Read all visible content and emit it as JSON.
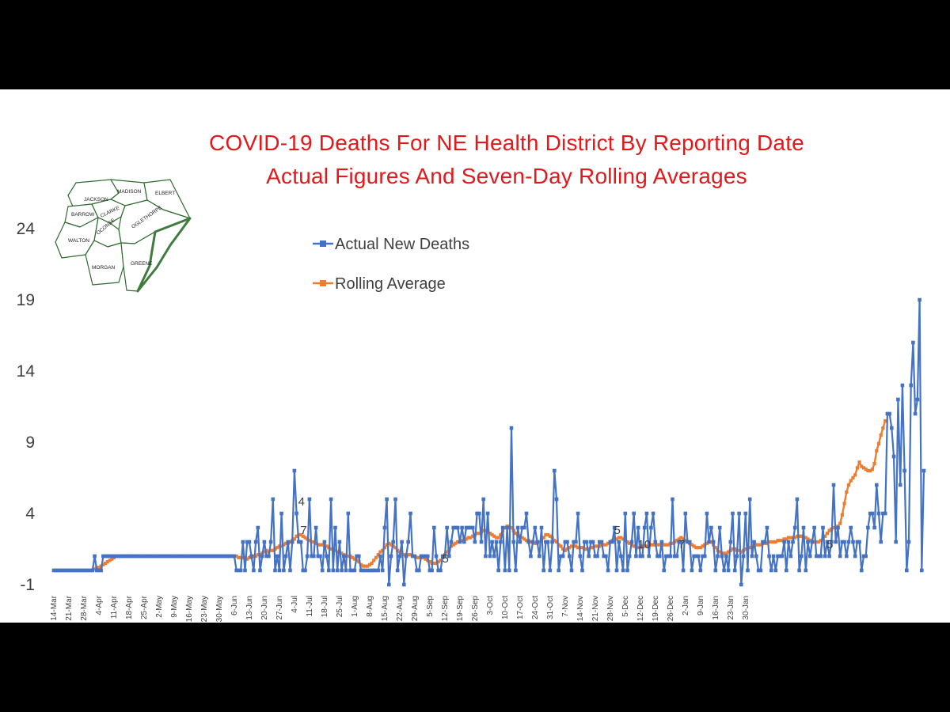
{
  "title_line1": "COVID-19 Deaths For NE Health District By Reporting Date",
  "title_line2": "Actual Figures And Seven-Day Rolling Averages",
  "map": {
    "counties": [
      "JACKSON",
      "MADISON",
      "ELBERT",
      "BARROW",
      "CLARKE",
      "OCONEE",
      "OGLETHORPE",
      "WALTON",
      "MORGAN",
      "GREENE"
    ]
  },
  "colors": {
    "actual": "#4472c4",
    "rolling": "#ed7d31",
    "title": "#e0191b",
    "grid_text": "#404040",
    "map_border": "#3e7c3e"
  },
  "chart_data": {
    "type": "line",
    "title": "COVID-19 Deaths For NE Health District By Reporting Date Actual Figures And Seven-Day Rolling Averages",
    "ylim": [
      -1,
      24
    ],
    "yticks": [
      -1,
      4,
      9,
      14,
      19,
      24
    ],
    "x_tick_labels": [
      "14-Mar",
      "21-Mar",
      "28-Mar",
      "4-Apr",
      "11-Apr",
      "18-Apr",
      "25-Apr",
      "2-May",
      "9-May",
      "16-May",
      "23-May",
      "30-May",
      "6-Jun",
      "13-Jun",
      "20-Jun",
      "27-Jun",
      "4-Jul",
      "11-Jul",
      "18-Jul",
      "25-Jul",
      "1-Aug",
      "8-Aug",
      "15-Aug",
      "22-Aug",
      "29-Aug",
      "5-Sep",
      "12-Sep",
      "19-Sep",
      "26-Sep",
      "3-Oct",
      "10-Oct",
      "17-Oct",
      "24-Oct",
      "31-Oct",
      "7-Nov",
      "14-Nov",
      "21-Nov",
      "28-Nov",
      "5-Dec",
      "12-Dec",
      "19-Dec",
      "26-Dec",
      "2-Jan",
      "9-Jan",
      "16-Jan",
      "23-Jan",
      "30-Jan"
    ],
    "legend": {
      "position": "upper-left"
    },
    "grid": false,
    "series": [
      {
        "name": "Actual New Deaths",
        "marker": "square",
        "values": [
          0,
          0,
          0,
          0,
          0,
          0,
          0,
          0,
          0,
          0,
          0,
          0,
          0,
          0,
          0,
          0,
          0,
          0,
          0,
          1,
          0,
          0,
          0,
          1,
          1,
          1,
          1,
          1,
          1,
          1,
          1,
          1,
          1,
          1,
          1,
          1,
          1,
          1,
          1,
          1,
          1,
          1,
          1,
          1,
          1,
          1,
          1,
          1,
          1,
          1,
          1,
          1,
          1,
          1,
          1,
          1,
          1,
          1,
          1,
          1,
          1,
          1,
          1,
          1,
          1,
          1,
          1,
          1,
          1,
          1,
          1,
          1,
          1,
          1,
          1,
          1,
          1,
          1,
          1,
          1,
          1,
          1,
          1,
          1,
          1,
          0,
          0,
          0,
          2,
          0,
          2,
          2,
          1,
          0,
          2,
          3,
          0,
          1,
          2,
          1,
          1,
          2,
          5,
          0,
          1,
          0,
          4,
          0,
          1,
          2,
          0,
          2,
          7,
          4,
          2,
          2,
          0,
          0,
          1,
          5,
          1,
          1,
          3,
          1,
          1,
          0,
          2,
          1,
          0,
          5,
          0,
          3,
          0,
          2,
          0,
          1,
          0,
          4,
          0,
          0,
          0,
          1,
          1,
          0,
          0,
          0,
          0,
          0,
          0,
          0,
          0,
          0,
          1,
          0,
          3,
          5,
          -1,
          1,
          2,
          5,
          0,
          1,
          2,
          -1,
          1,
          2,
          4,
          1,
          1,
          0,
          0,
          1,
          1,
          1,
          1,
          0,
          0,
          3,
          1,
          0,
          0,
          1,
          1,
          3,
          1,
          2,
          3,
          3,
          3,
          2,
          3,
          2,
          3,
          3,
          3,
          3,
          2,
          4,
          4,
          2,
          5,
          1,
          4,
          1,
          2,
          1,
          2,
          0,
          2,
          3,
          0,
          3,
          0,
          10,
          2,
          0,
          3,
          2,
          3,
          3,
          4,
          2,
          1,
          2,
          3,
          2,
          1,
          3,
          0,
          2,
          2,
          0,
          2,
          7,
          5,
          0,
          1,
          1,
          2,
          2,
          1,
          0,
          2,
          2,
          4,
          1,
          0,
          2,
          2,
          1,
          2,
          2,
          1,
          1,
          2,
          2,
          1,
          1,
          0,
          2,
          2,
          3,
          0,
          2,
          1,
          0,
          4,
          0,
          1,
          2,
          4,
          1,
          3,
          1,
          1,
          3,
          4,
          1,
          3,
          4,
          2,
          1,
          1,
          2,
          0,
          1,
          1,
          1,
          5,
          1,
          1,
          2,
          2,
          0,
          4,
          2,
          2,
          0,
          1,
          1,
          1,
          0,
          1,
          1,
          4,
          2,
          3,
          2,
          0,
          1,
          3,
          1,
          0,
          1,
          0,
          2,
          4,
          0,
          1,
          4,
          -1,
          1,
          4,
          0,
          5,
          1,
          2,
          1,
          0,
          0,
          2,
          2,
          3,
          1,
          0,
          1,
          0,
          1,
          1,
          1,
          2,
          0,
          2,
          1,
          2,
          3,
          5,
          0,
          1,
          3,
          0,
          2,
          1,
          2,
          3,
          1,
          1,
          1,
          3,
          1,
          2,
          1,
          2,
          6,
          2,
          3,
          1,
          2,
          2,
          1,
          2,
          3,
          2,
          1,
          2,
          2,
          0,
          1,
          1,
          3,
          4,
          4,
          3,
          6,
          4,
          2,
          4,
          4,
          11,
          11,
          10,
          8,
          2,
          12,
          6,
          13,
          7,
          0,
          2,
          13,
          16,
          11,
          12,
          19,
          0,
          7
        ],
        "labels": [
          {
            "i": 113,
            "v": "4"
          },
          {
            "i": 114,
            "v": "7"
          },
          {
            "i": 180,
            "v": "5"
          },
          {
            "i": 260,
            "v": "5"
          },
          {
            "i": 271,
            "v": "10"
          },
          {
            "i": 290,
            "v": "7"
          },
          {
            "i": 359,
            "v": "5"
          },
          {
            "i": 417,
            "v": "4"
          },
          {
            "i": 421,
            "v": "5"
          },
          {
            "i": 436,
            "v": "6"
          },
          {
            "i": 457,
            "v": "6"
          },
          {
            "i": 462,
            "v": "11"
          },
          {
            "i": 466,
            "v": "8"
          },
          {
            "i": 470,
            "v": "12"
          },
          {
            "i": 472,
            "v": "13"
          },
          {
            "i": 474,
            "v": "10"
          },
          {
            "i": 480,
            "v": "16"
          },
          {
            "i": 484,
            "v": "19"
          }
        ]
      },
      {
        "name": "Rolling Average",
        "marker": "square",
        "start_index": 19,
        "values": [
          0.1,
          0.2,
          0.2,
          0.3,
          0.4,
          0.5,
          0.6,
          0.7,
          0.8,
          0.9,
          1,
          1,
          1,
          1,
          1,
          1,
          1,
          1,
          1,
          1,
          1,
          1,
          1,
          1,
          1,
          1,
          1,
          1,
          1,
          1,
          1,
          1,
          1,
          1,
          1,
          1,
          1,
          1,
          1,
          1,
          1,
          1,
          1,
          1,
          1,
          1,
          1,
          1,
          1,
          1,
          1,
          1,
          1,
          1,
          1,
          1,
          1,
          1,
          1,
          1,
          1,
          1,
          1,
          1,
          1,
          1,
          1,
          0.9,
          0.9,
          0.9,
          0.9,
          0.8,
          0.9,
          0.9,
          1,
          1,
          1.1,
          1.1,
          1.2,
          1.3,
          1.4,
          1.3,
          1.4,
          1.4,
          1.5,
          1.6,
          1.7,
          1.7,
          1.8,
          1.9,
          1.9,
          2,
          2.1,
          2.2,
          2.4,
          2.5,
          2.5,
          2.4,
          2.3,
          2.2,
          2.1,
          2,
          2,
          1.9,
          1.8,
          1.8,
          1.8,
          1.7,
          1.7,
          1.6,
          1.5,
          1.5,
          1.4,
          1.3,
          1.3,
          1.2,
          1.1,
          1,
          1,
          1,
          0.9,
          0.8,
          0.7,
          0.6,
          0.4,
          0.3,
          0.3,
          0.3,
          0.4,
          0.5,
          0.7,
          0.9,
          1.1,
          1.3,
          1.4,
          1.6,
          1.8,
          1.9,
          1.8,
          1.7,
          1.6,
          1.4,
          1.3,
          1.2,
          1.1,
          1.1,
          1.1,
          1.1,
          1,
          1,
          0.9,
          0.9,
          0.9,
          0.9,
          0.8,
          0.7,
          0.6,
          0.5,
          0.5,
          0.5,
          0.6,
          0.7,
          0.9,
          1.1,
          1.3,
          1.5,
          1.7,
          1.8,
          1.9,
          2,
          2,
          2.1,
          2.2,
          2.2,
          2.3,
          2.3,
          2.4,
          2.5,
          2.6,
          2.6,
          2.7,
          2.8,
          2.8,
          2.7,
          2.6,
          2.5,
          2.4,
          2.3,
          2.3,
          2.5,
          2.8,
          3,
          3.1,
          3.1,
          3,
          2.8,
          2.6,
          2.5,
          2.4,
          2.3,
          2.2,
          2.1,
          2.1,
          2,
          2,
          1.9,
          1.9,
          2,
          2.1,
          2.3,
          2.5,
          2.5,
          2.4,
          2.3,
          2.1,
          2,
          1.8,
          1.7,
          1.5,
          1.4,
          1.5,
          1.6,
          1.7,
          1.7,
          1.7,
          1.6,
          1.6,
          1.6,
          1.5,
          1.5,
          1.5,
          1.6,
          1.6,
          1.7,
          1.7,
          1.7,
          1.8,
          1.8,
          1.8,
          1.9,
          2,
          2.1,
          2.2,
          2.2,
          2.3,
          2.3,
          2.2,
          2.1,
          2,
          1.9,
          1.8,
          1.7,
          1.7,
          1.6,
          1.6,
          1.7,
          1.7,
          1.7,
          1.8,
          1.8,
          1.8,
          1.8,
          1.8,
          1.8,
          1.8,
          1.8,
          1.8,
          1.8,
          1.9,
          1.9,
          2,
          2.1,
          2.2,
          2.3,
          2.2,
          2.1,
          2,
          1.9,
          1.8,
          1.7,
          1.6,
          1.6,
          1.6,
          1.7,
          1.8,
          1.9,
          2,
          2,
          1.8,
          1.6,
          1.4,
          1.3,
          1.2,
          1.2,
          1.2,
          1.3,
          1.4,
          1.5,
          1.5,
          1.4,
          1.4,
          1.3,
          1.4,
          1.5,
          1.6,
          1.6,
          1.7,
          1.7,
          1.8,
          1.8,
          1.8,
          1.9,
          1.9,
          1.9,
          2,
          2,
          2,
          2,
          2.1,
          2.1,
          2.1,
          2.2,
          2.2,
          2.3,
          2.3,
          2.3,
          2.3,
          2.4,
          2.4,
          2.4,
          2.3,
          2.3,
          2.2,
          2.1,
          2,
          2,
          2,
          2,
          2.1,
          2.2,
          2.4,
          2.6,
          2.8,
          2.9,
          3,
          3,
          3.1,
          3.3,
          3.9,
          4.7,
          5.5,
          6,
          6.3,
          6.5,
          6.7,
          7.2,
          7.6,
          7.3,
          7.2,
          7.1,
          7,
          7,
          7.1,
          7.5,
          8.4,
          8.9,
          9.5,
          10,
          10.5
        ]
      }
    ]
  }
}
